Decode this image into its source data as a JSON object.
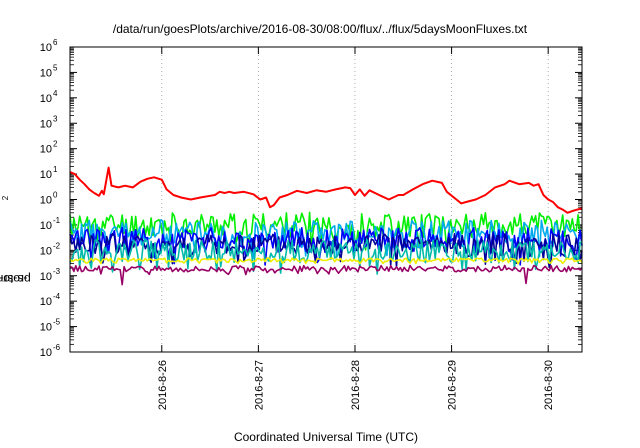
{
  "chart_data": {
    "type": "line",
    "title": "/data/run/goesPlots/archive/2016-08-30/08:00/flux/../flux/5daysMoonFluxes.txt",
    "xlabel": "Coordinated Universal Time (UTC)",
    "ylabel": {
      "prefix": "protons/cm",
      "sup": "2",
      "suffix": "-s-sr-MeV"
    },
    "yscale": "log",
    "ylim": [
      1e-06,
      1000000.0
    ],
    "y_ticks": [
      {
        "base": "10",
        "exp": "-6"
      },
      {
        "base": "10",
        "exp": "-5"
      },
      {
        "base": "10",
        "exp": "-4"
      },
      {
        "base": "10",
        "exp": "-3"
      },
      {
        "base": "10",
        "exp": "-2"
      },
      {
        "base": "10",
        "exp": "-1"
      },
      {
        "base": "10",
        "exp": "0"
      },
      {
        "base": "10",
        "exp": "1"
      },
      {
        "base": "10",
        "exp": "2"
      },
      {
        "base": "10",
        "exp": "3"
      },
      {
        "base": "10",
        "exp": "4"
      },
      {
        "base": "10",
        "exp": "5"
      },
      {
        "base": "10",
        "exp": "6"
      }
    ],
    "x_range_days": [
      25.05,
      30.35
    ],
    "x_ticks": [
      {
        "label": "2016-8-26",
        "day": 26
      },
      {
        "label": "2016-8-27",
        "day": 27
      },
      {
        "label": "2016-8-28",
        "day": 28
      },
      {
        "label": "2016-8-29",
        "day": 29
      },
      {
        "label": "2016-8-30",
        "day": 30
      }
    ],
    "grid": true,
    "series": [
      {
        "color": "#ff0000",
        "points": [
          [
            25.05,
            12
          ],
          [
            25.1,
            10
          ],
          [
            25.15,
            6
          ],
          [
            25.2,
            4
          ],
          [
            25.25,
            2.5
          ],
          [
            25.3,
            1.8
          ],
          [
            25.35,
            1.4
          ],
          [
            25.38,
            2.2
          ],
          [
            25.4,
            1.6
          ],
          [
            25.45,
            18
          ],
          [
            25.48,
            3.5
          ],
          [
            25.55,
            3.0
          ],
          [
            25.62,
            3.5
          ],
          [
            25.7,
            3.0
          ],
          [
            25.78,
            5.0
          ],
          [
            25.85,
            6.5
          ],
          [
            25.92,
            7.5
          ],
          [
            26.0,
            6.0
          ],
          [
            26.05,
            2.5
          ],
          [
            26.12,
            1.5
          ],
          [
            26.2,
            1.2
          ],
          [
            26.3,
            1.0
          ],
          [
            26.4,
            1.2
          ],
          [
            26.5,
            1.4
          ],
          [
            26.55,
            1.5
          ],
          [
            26.6,
            2.0
          ],
          [
            26.65,
            1.8
          ],
          [
            26.7,
            2.0
          ],
          [
            26.75,
            1.8
          ],
          [
            26.85,
            2.0
          ],
          [
            26.95,
            1.6
          ],
          [
            27.02,
            1.0
          ],
          [
            27.08,
            1.2
          ],
          [
            27.12,
            0.5
          ],
          [
            27.16,
            0.6
          ],
          [
            27.22,
            1.2
          ],
          [
            27.3,
            1.5
          ],
          [
            27.4,
            2.2
          ],
          [
            27.5,
            1.8
          ],
          [
            27.6,
            2.3
          ],
          [
            27.7,
            2.0
          ],
          [
            27.8,
            2.5
          ],
          [
            27.9,
            3.0
          ],
          [
            27.95,
            2.8
          ],
          [
            28.0,
            1.5
          ],
          [
            28.05,
            2.5
          ],
          [
            28.1,
            1.4
          ],
          [
            28.15,
            2.3
          ],
          [
            28.25,
            1.5
          ],
          [
            28.35,
            1.0
          ],
          [
            28.45,
            1.5
          ],
          [
            28.5,
            1.5
          ],
          [
            28.6,
            2.5
          ],
          [
            28.7,
            4.0
          ],
          [
            28.8,
            5.5
          ],
          [
            28.9,
            4.5
          ],
          [
            28.95,
            2.0
          ],
          [
            29.05,
            1.0
          ],
          [
            29.1,
            0.7
          ],
          [
            29.15,
            0.8
          ],
          [
            29.25,
            1.0
          ],
          [
            29.35,
            1.5
          ],
          [
            29.45,
            3.0
          ],
          [
            29.55,
            4.0
          ],
          [
            29.6,
            5.5
          ],
          [
            29.7,
            4.0
          ],
          [
            29.8,
            4.5
          ],
          [
            29.85,
            3.5
          ],
          [
            29.9,
            4.0
          ],
          [
            29.95,
            1.5
          ],
          [
            30.0,
            1.0
          ],
          [
            30.05,
            0.8
          ],
          [
            30.1,
            0.5
          ],
          [
            30.15,
            0.4
          ],
          [
            30.2,
            0.3
          ],
          [
            30.25,
            0.35
          ],
          [
            30.3,
            0.4
          ],
          [
            30.35,
            0.45
          ]
        ]
      },
      {
        "color": "#00ee00",
        "level": 0.1,
        "spread": 1.0,
        "seed": 11
      },
      {
        "color": "#00aaee",
        "level": 0.045,
        "spread": 1.1,
        "seed": 23
      },
      {
        "color": "#0000ff",
        "level": 0.025,
        "spread": 1.0,
        "seed": 37
      },
      {
        "color": "#000099",
        "level": 0.016,
        "spread": 0.9,
        "seed": 41
      },
      {
        "color": "#00bbaa",
        "level": 0.009,
        "spread": 0.9,
        "seed": 53
      },
      {
        "color": "#eeee00",
        "level": 0.0042,
        "spread": 0.15,
        "seed": 67
      },
      {
        "color": "#990066",
        "level": 0.0019,
        "spread": 0.25,
        "seed": 79,
        "spikes": [
          [
            25.58,
            0.00045
          ],
          [
            29.77,
            0.0005
          ]
        ]
      }
    ]
  }
}
